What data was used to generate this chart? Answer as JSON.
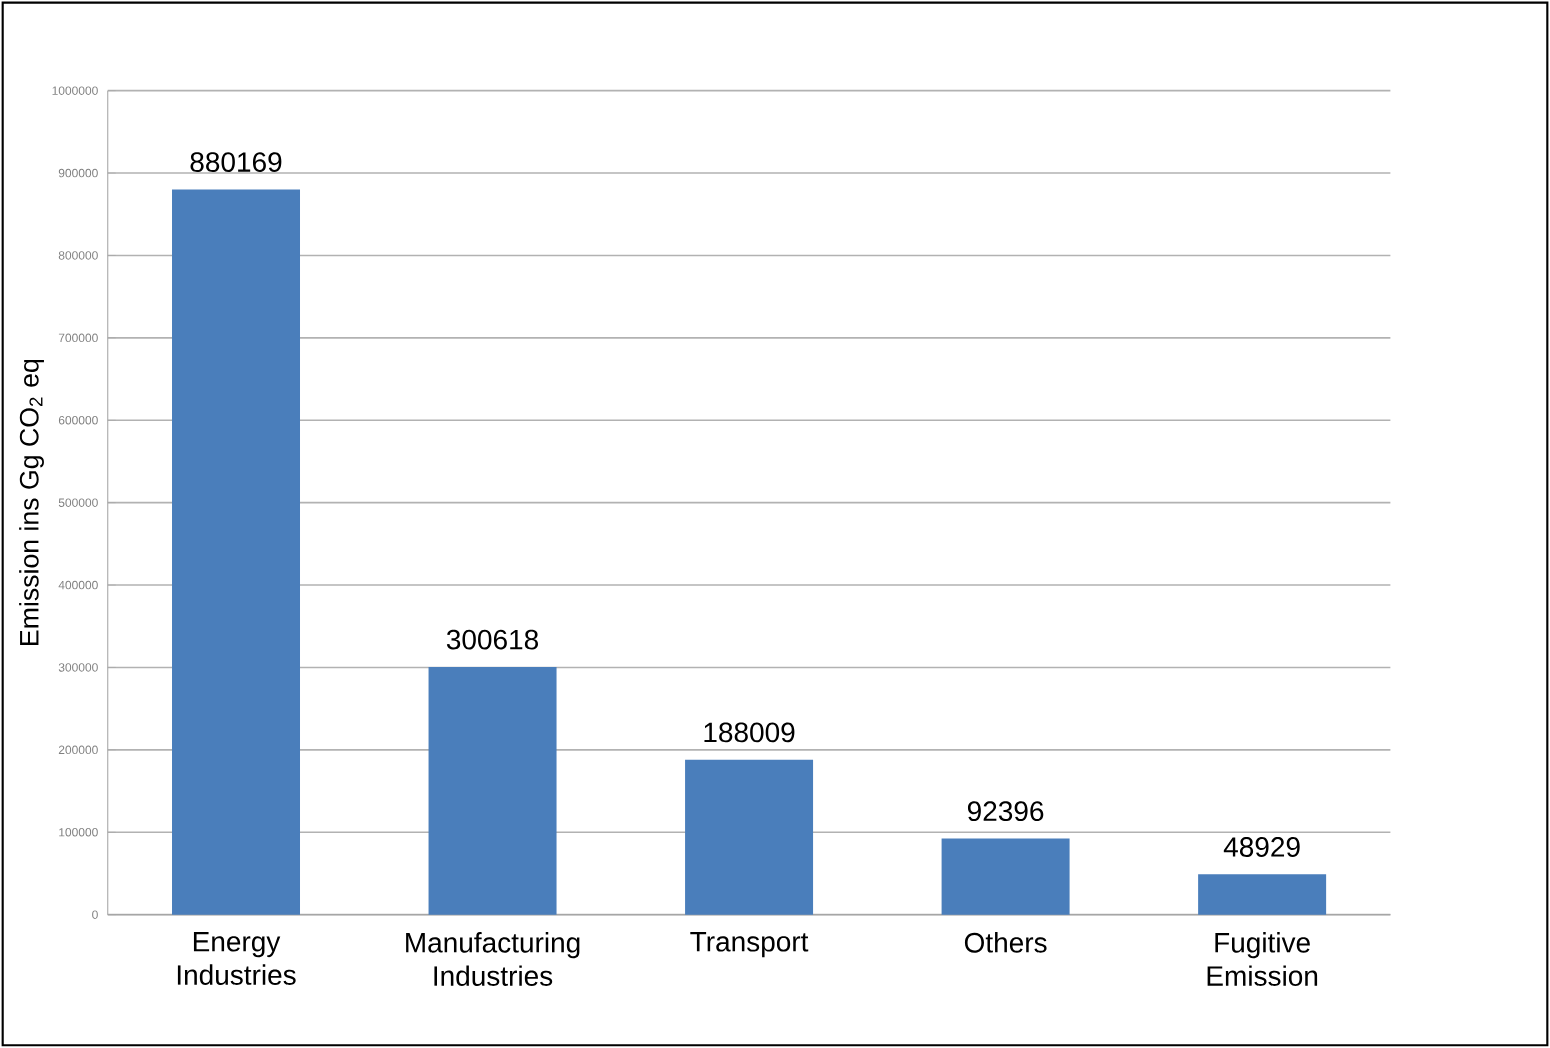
{
  "chart_data": {
    "type": "bar",
    "ylabel": "Emission ins Gg CO$_{2}$ eq",
    "categories": [
      "Energy Industries",
      "Manufacturing Industries",
      "Transport",
      "Others",
      "Fugitive Emission"
    ],
    "values": [
      880169,
      300618,
      188009,
      92396,
      48929
    ],
    "color": "#4a7ebb",
    "ylim": [
      0,
      1000000
    ],
    "yticks": [
      0,
      100000,
      200000,
      300000,
      400000,
      500000,
      600000,
      700000,
      800000,
      900000,
      1000000
    ],
    "grid": "y",
    "data_labels": true
  }
}
